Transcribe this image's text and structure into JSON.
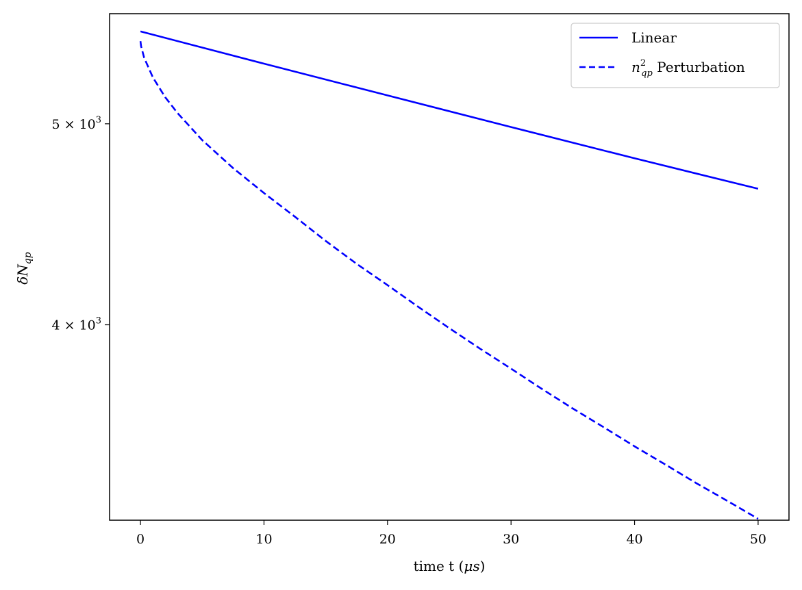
{
  "chart_data": {
    "type": "line",
    "xlabel_prefix": "time t (",
    "xlabel_unit": "μs",
    "xlabel_suffix": ")",
    "ylabel_main": "δN",
    "ylabel_sub": "qp",
    "yscale": "log",
    "xlim": [
      -2.5,
      52.5
    ],
    "ylim": [
      3220,
      5650
    ],
    "x_ticks": [
      0,
      10,
      20,
      30,
      40,
      50
    ],
    "y_ticks": [
      {
        "value": 5000,
        "mantissa": "5",
        "times": "×",
        "base": "10",
        "exp": "3"
      },
      {
        "value": 4000,
        "mantissa": "4",
        "times": "×",
        "base": "10",
        "exp": "3"
      }
    ],
    "legend_position": "upper right",
    "series": [
      {
        "name": "Linear",
        "style": "solid",
        "color": "#0000ff",
        "x": [
          0,
          10,
          20,
          30,
          40,
          50
        ],
        "y": [
          5540,
          5345,
          5160,
          4982,
          4812,
          4652
        ]
      },
      {
        "name_main": "n",
        "name_sup": "2",
        "name_sub": "qp",
        "name_suffix": " Perturbation",
        "style": "dashed",
        "color": "#0000ff",
        "x": [
          0,
          0.05,
          0.3,
          1,
          2,
          3,
          5,
          7.5,
          10,
          12.5,
          15,
          17.5,
          20,
          22.5,
          25,
          27.5,
          30,
          32.5,
          35,
          37.5,
          40,
          42.5,
          45,
          47.5,
          50
        ],
        "y": [
          5480,
          5450,
          5380,
          5265,
          5150,
          5060,
          4910,
          4760,
          4630,
          4510,
          4390,
          4280,
          4180,
          4080,
          3985,
          3895,
          3810,
          3725,
          3645,
          3570,
          3495,
          3425,
          3355,
          3290,
          3225
        ]
      }
    ]
  }
}
